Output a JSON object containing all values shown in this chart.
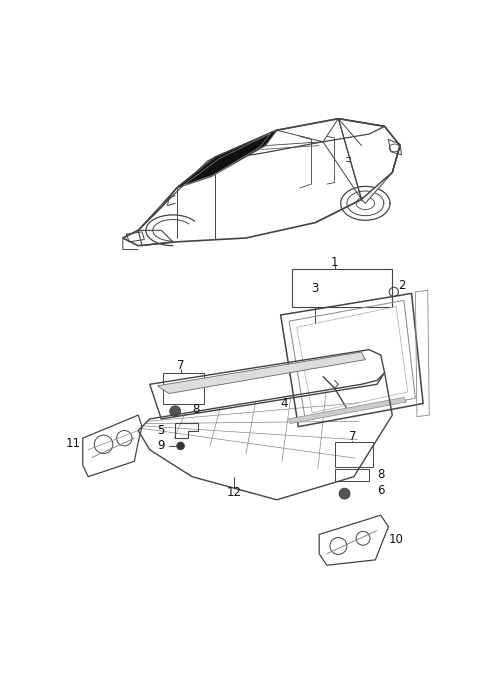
{
  "bg_color": "#ffffff",
  "fig_width": 4.8,
  "fig_height": 7.0,
  "dpi": 100,
  "line_color": "#444444",
  "label_color": "#111111",
  "label_fontsize": 8.5
}
